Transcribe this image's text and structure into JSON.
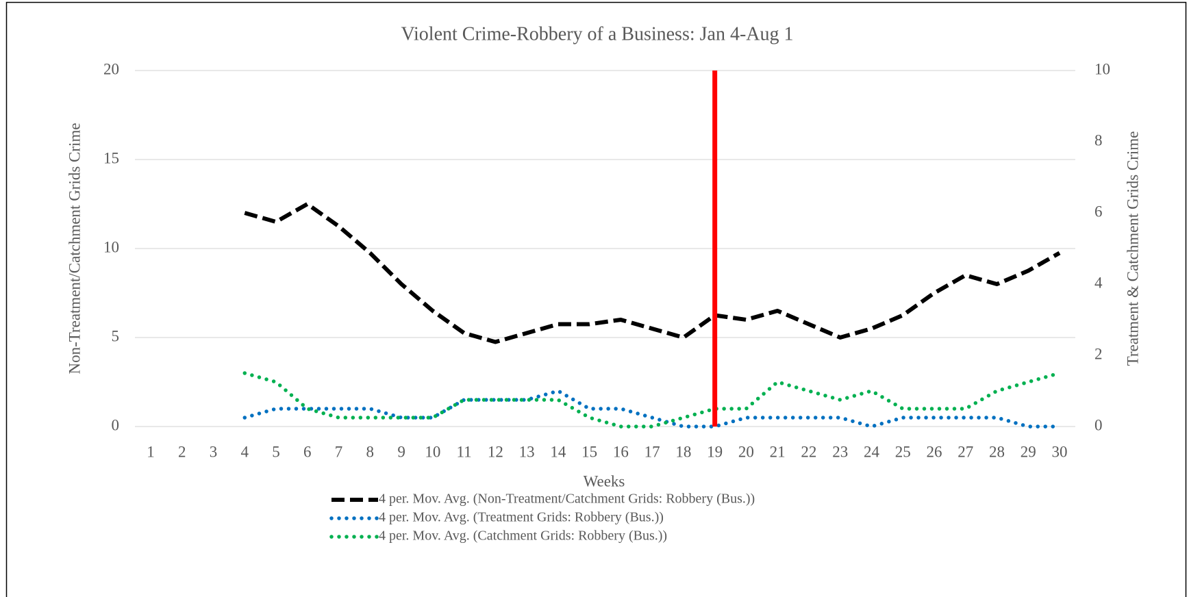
{
  "chart_data": {
    "type": "line",
    "title": "Violent Crime-Robbery of a Business: Jan 4-Aug 1",
    "x_label": "Weeks",
    "y_label": "Non-Treatment/Catchment  Grids Crime",
    "y2_label": "Treatment  &  Catchment  Grids Crime",
    "categories": [
      "1",
      "2",
      "3",
      "4",
      "5",
      "6",
      "7",
      "8",
      "9",
      "10",
      "11",
      "12",
      "13",
      "14",
      "15",
      "16",
      "17",
      "18",
      "19",
      "20",
      "21",
      "22",
      "23",
      "24",
      "25",
      "26",
      "27",
      "28",
      "29",
      "30"
    ],
    "ylim": [
      0,
      20
    ],
    "yticks": [
      0,
      5,
      10,
      15,
      20
    ],
    "y2lim": [
      0,
      10
    ],
    "y2ticks": [
      0,
      2,
      4,
      6,
      8,
      10
    ],
    "grid": true,
    "legend": "bottom",
    "vline": {
      "category": "19",
      "color": "#ff0000"
    },
    "series": [
      {
        "name": "4 per. Mov. Avg. (Non-Treatment/Catchment Grids: Robbery (Bus.))",
        "color": "#000000",
        "style": "dashed",
        "values": [
          null,
          null,
          null,
          12,
          11.5,
          12.5,
          11.25,
          9.75,
          8,
          6.5,
          5.25,
          4.75,
          5.25,
          5.75,
          5.75,
          6,
          5.5,
          5,
          6.25,
          6,
          6.5,
          5.75,
          5,
          5.5,
          6.25,
          7.5,
          8.5,
          8,
          8.75,
          9.75
        ]
      },
      {
        "name": "4 per. Mov. Avg. (Treatment Grids: Robbery (Bus.))",
        "color": "#0070c0",
        "style": "dotted",
        "axis": "y2",
        "values": [
          null,
          null,
          null,
          0.25,
          0.5,
          0.5,
          0.5,
          0.5,
          0.25,
          0.25,
          0.75,
          0.75,
          0.75,
          1,
          0.5,
          0.5,
          0.25,
          0,
          0,
          0.25,
          0.25,
          0.25,
          0.25,
          0,
          0.25,
          0.25,
          0.25,
          0.25,
          0,
          0
        ]
      },
      {
        "name": "4 per. Mov. Avg. (Catchment Grids: Robbery (Bus.))",
        "color": "#00b050",
        "style": "dotted",
        "axis": "y2",
        "values": [
          null,
          null,
          null,
          1.5,
          1.25,
          0.5,
          0.25,
          0.25,
          0.25,
          0.25,
          0.75,
          0.75,
          0.75,
          0.75,
          0.25,
          0,
          0,
          0.25,
          0.5,
          0.5,
          1.25,
          1,
          0.75,
          1,
          0.5,
          0.5,
          0.5,
          1,
          1.25,
          1.5
        ]
      }
    ]
  }
}
